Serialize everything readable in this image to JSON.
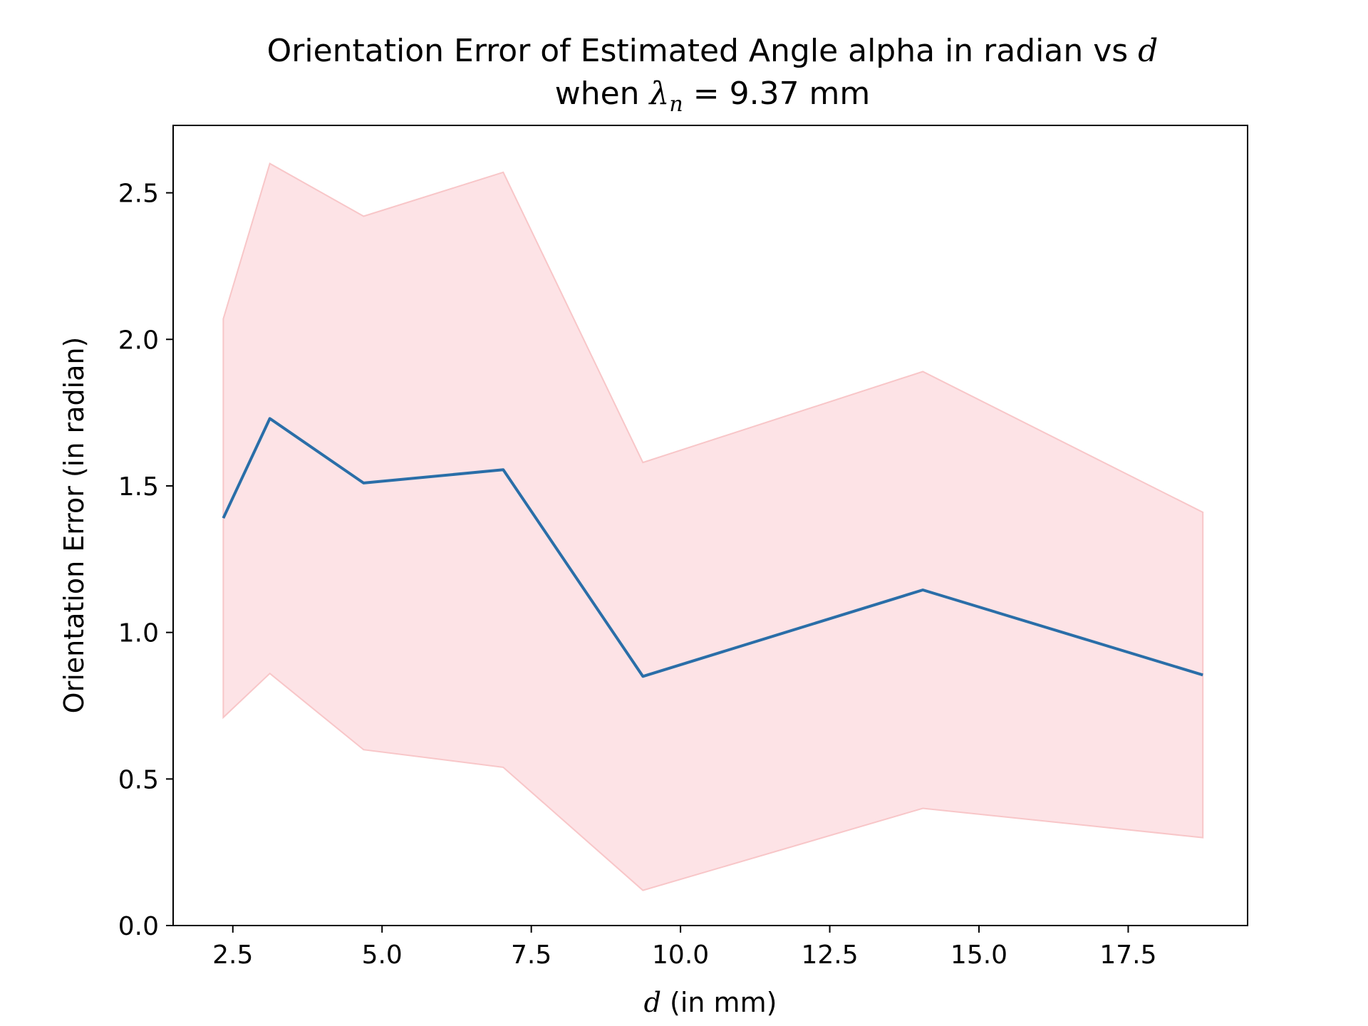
{
  "chart_data": {
    "type": "line",
    "title_line1_prefix": "Orientation Error of Estimated Angle alpha in radian vs ",
    "title_line1_var": "d",
    "title_line2_prefix": "when ",
    "title_line2_symbol": "λ",
    "title_line2_subscript": "n",
    "title_line2_suffix": " = 9.37 mm",
    "xlabel_var": "d",
    "xlabel_suffix": " (in mm)",
    "ylabel": "Orientation Error (in radian)",
    "xlim": [
      1.5,
      19.5
    ],
    "ylim": [
      0.0,
      2.73
    ],
    "x_ticks": [
      2.5,
      5.0,
      7.5,
      10.0,
      12.5,
      15.0,
      17.5
    ],
    "x_tick_labels": [
      "2.5",
      "5.0",
      "7.5",
      "10.0",
      "12.5",
      "15.0",
      "17.5"
    ],
    "y_ticks": [
      0.0,
      0.5,
      1.0,
      1.5,
      2.0,
      2.5
    ],
    "y_tick_labels": [
      "0.0",
      "0.5",
      "1.0",
      "1.5",
      "2.0",
      "2.5"
    ],
    "grid": false,
    "line_color": "#2a6ea8",
    "band_fill_color": "#fde3e6",
    "band_edge_color": "#f8c6c8",
    "series": [
      {
        "x": [
          2.34,
          3.12,
          4.69,
          7.03,
          9.37,
          14.06,
          18.75
        ],
        "y": [
          1.39,
          1.73,
          1.51,
          1.555,
          0.85,
          1.145,
          0.855
        ],
        "upper": [
          2.07,
          2.6,
          2.42,
          2.57,
          1.58,
          1.89,
          1.41
        ],
        "lower": [
          0.71,
          0.86,
          0.6,
          0.54,
          0.12,
          0.4,
          0.3
        ]
      }
    ]
  }
}
